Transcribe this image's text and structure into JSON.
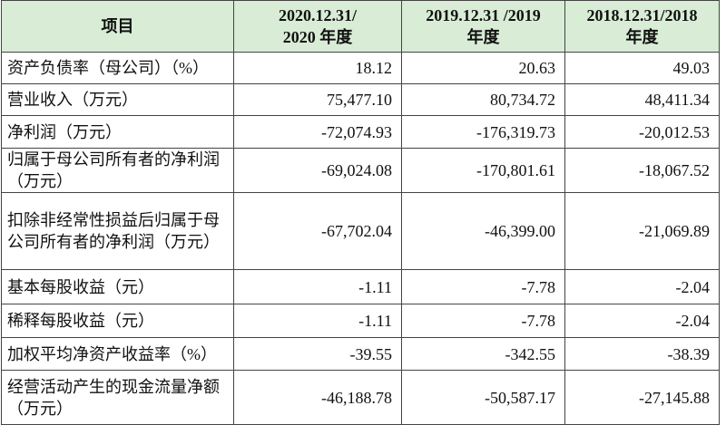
{
  "table": {
    "header": [
      [
        "项目"
      ],
      [
        "2020.12.31/",
        "2020 年度"
      ],
      [
        "2019.12.31 /2019",
        "年度"
      ],
      [
        "2018.12.31/2018",
        "年度"
      ]
    ],
    "rows": [
      [
        "资产负债率（母公司）（%）",
        "18.12",
        "20.63",
        "49.03"
      ],
      [
        "营业收入（万元）",
        "75,477.10",
        "80,734.72",
        "48,411.34"
      ],
      [
        "净利润（万元）",
        "-72,074.93",
        "-176,319.73",
        "-20,012.53"
      ],
      [
        "归属于母公司所有者的净利润（万元）",
        "-69,024.08",
        "-170,801.61",
        "-18,067.52"
      ],
      [
        "扣除非经常性损益后归属于母公司所有者的净利润（万元）",
        "-67,702.04",
        "-46,399.00",
        "-21,069.89"
      ],
      [
        "基本每股收益（元）",
        "-1.11",
        "-7.78",
        "-2.04"
      ],
      [
        "稀释每股收益（元）",
        "-1.11",
        "-7.78",
        "-2.04"
      ],
      [
        "加权平均净资产收益率（%）",
        "-39.55",
        "-342.55",
        "-38.39"
      ],
      [
        "经营活动产生的现金流量净额（万元）",
        "-46,188.78",
        "-50,587.17",
        "-27,145.88"
      ]
    ]
  }
}
